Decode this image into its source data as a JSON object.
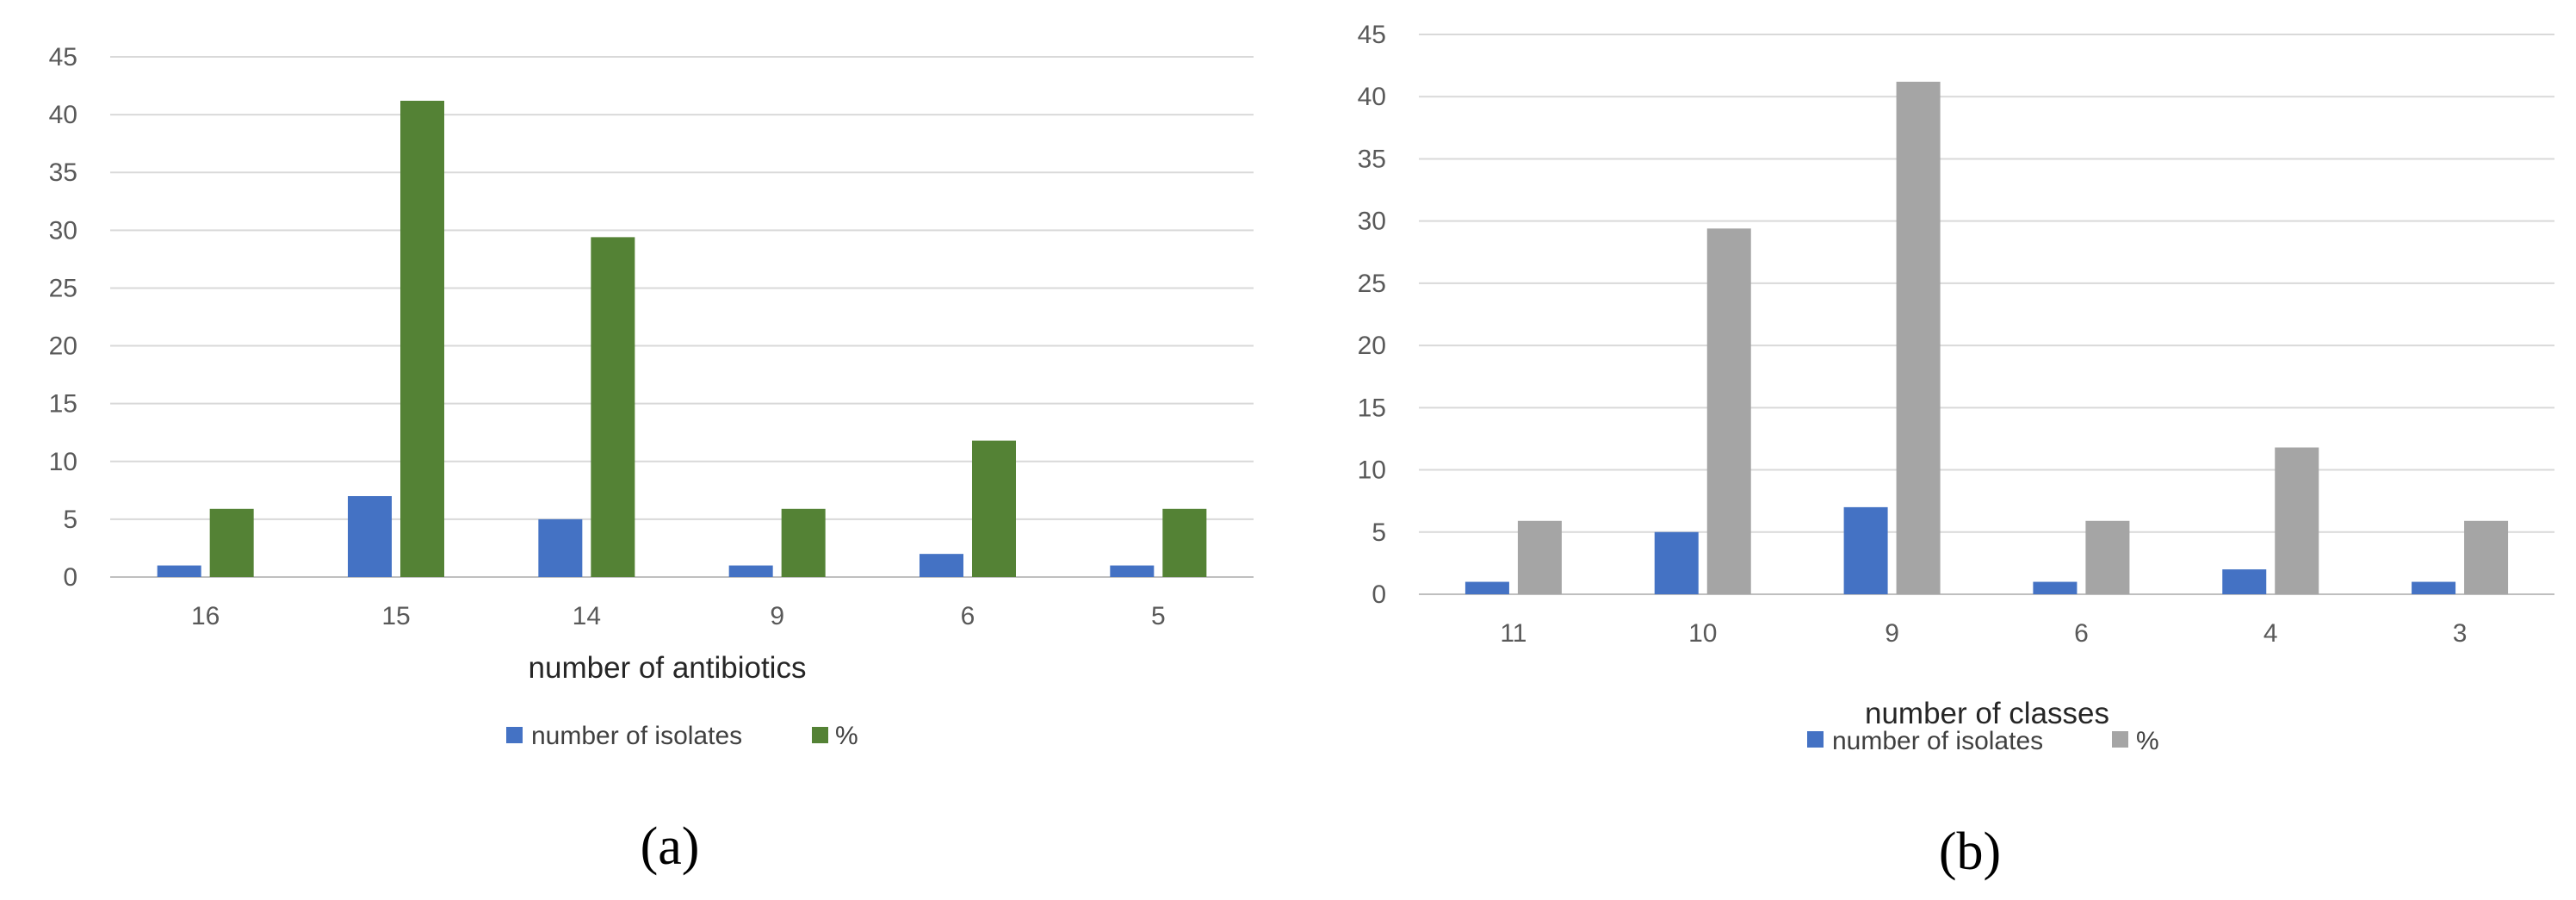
{
  "chart_data": [
    {
      "type": "bar",
      "panel_label": "(a)",
      "title": "",
      "xlabel": "number of antibiotics",
      "ylabel": "",
      "categories": [
        "16",
        "15",
        "14",
        "9",
        "6",
        "5"
      ],
      "series": [
        {
          "name": "number of isolates",
          "values": [
            1,
            7,
            5,
            1,
            2,
            1
          ],
          "color": "#4472C4"
        },
        {
          "name": "%",
          "values": [
            5.9,
            41.2,
            29.4,
            5.9,
            11.8,
            5.9
          ],
          "color": "#548235"
        }
      ],
      "ylim": [
        0,
        45
      ],
      "yticks": [
        0,
        5,
        10,
        15,
        20,
        25,
        30,
        35,
        40,
        45
      ],
      "grid": true,
      "legend": "bottom"
    },
    {
      "type": "bar",
      "panel_label": "(b)",
      "title": "",
      "xlabel": "number of classes",
      "ylabel": "",
      "categories": [
        "11",
        "10",
        "9",
        "6",
        "4",
        "3"
      ],
      "series": [
        {
          "name": "number of isolates",
          "values": [
            1,
            5,
            7,
            1,
            2,
            1
          ],
          "color": "#4472C4"
        },
        {
          "name": "%",
          "values": [
            5.9,
            29.4,
            41.2,
            5.9,
            11.8,
            5.9
          ],
          "color": "#A5A5A5"
        }
      ],
      "ylim": [
        0,
        45
      ],
      "yticks": [
        0,
        5,
        10,
        15,
        20,
        25,
        30,
        35,
        40,
        45
      ],
      "grid": true,
      "legend": "bottom"
    }
  ]
}
